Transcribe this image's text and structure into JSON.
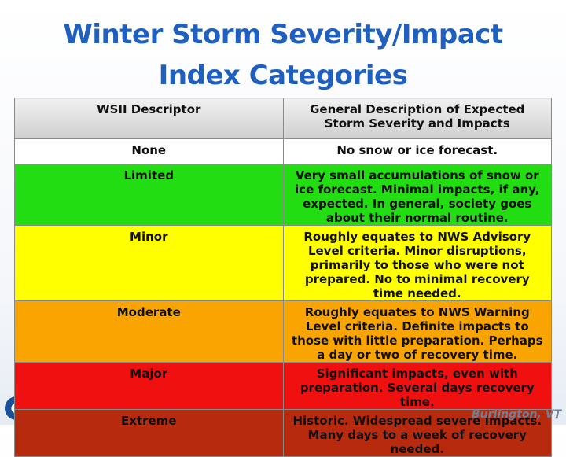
{
  "header": {
    "title": "Winter Storm Severity/Impact Index Categories"
  },
  "table": {
    "columns": [
      "WSII Descriptor",
      "General Description of Expected Storm Severity and Impacts"
    ],
    "rows": [
      [
        "None",
        "No snow or ice forecast."
      ],
      [
        "Limited",
        "Very small accumulations of snow or ice forecast. Minimal impacts, if any, expected. In general, society goes about their normal routine."
      ],
      [
        "Minor",
        "Roughly equates to NWS Advisory Level criteria. Minor disruptions, primarily to those who were not prepared. No to minimal recovery time needed."
      ],
      [
        "Moderate",
        "Roughly equates to NWS Warning Level criteria. Definite impacts to those with little preparation. Perhaps a day or two of recovery time."
      ],
      [
        "Major",
        "Significant impacts, even with preparation. Several days recovery time."
      ],
      [
        "Extreme",
        "Historic. Widespread severe impacts. Many days to a week of recovery needed."
      ]
    ]
  },
  "footer": {
    "location": "Burlington, VT"
  }
}
